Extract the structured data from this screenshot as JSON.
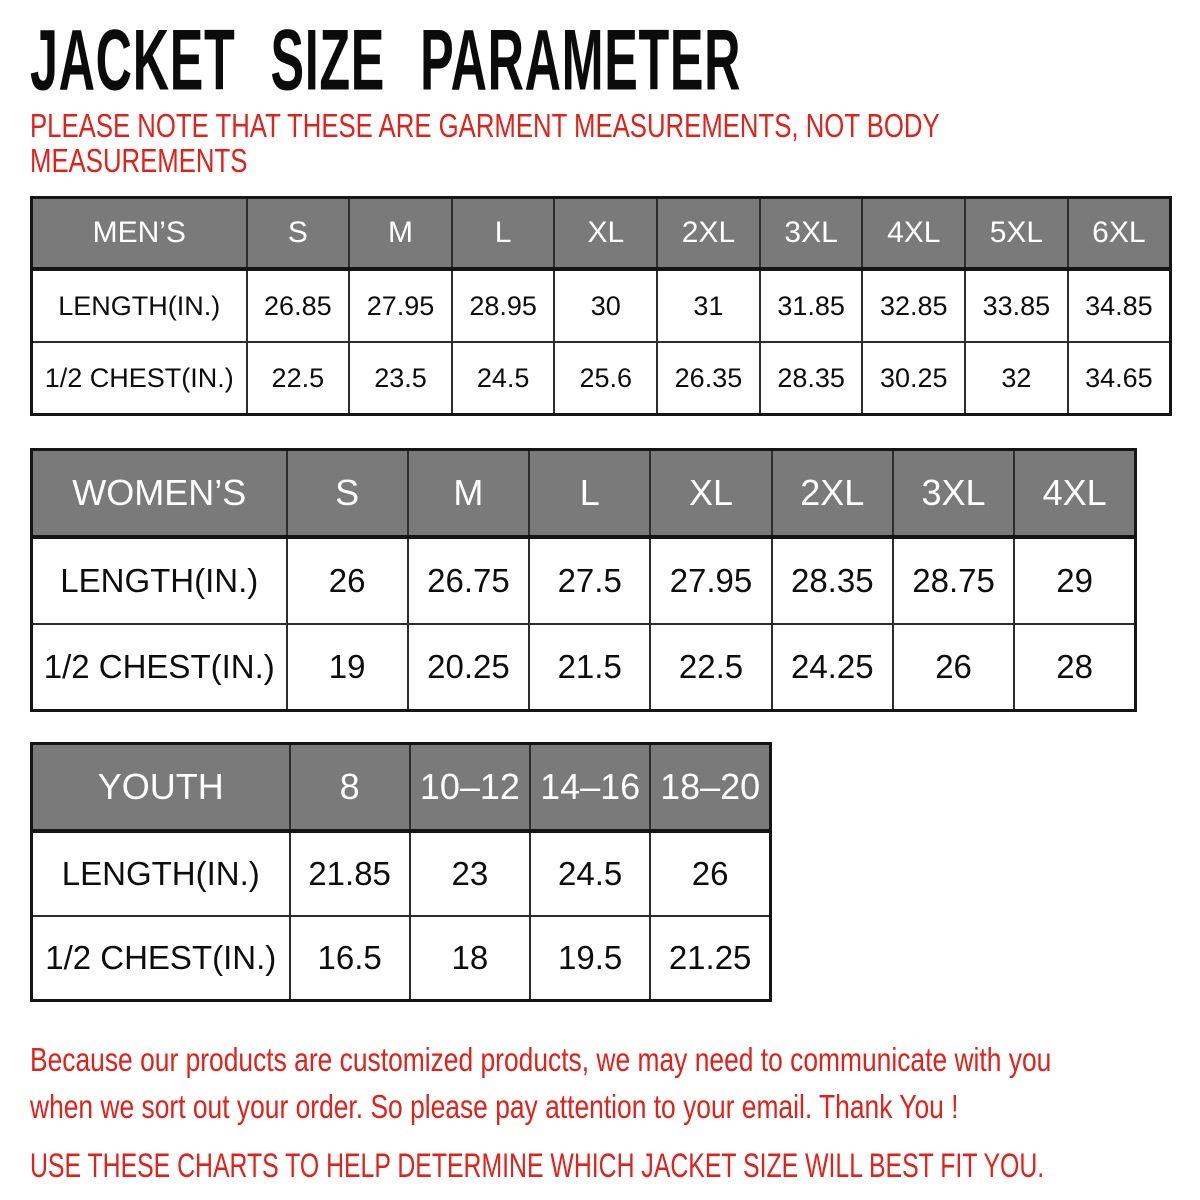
{
  "title": "JACKET SIZE PARAMETER",
  "note": {
    "lines": [
      "PLEASE NOTE THAT THESE ARE GARMENT MEASUREMENTS, NOT BODY",
      "MEASUREMENTS"
    ]
  },
  "tables": {
    "mens": {
      "header": [
        "MEN’S",
        "S",
        "M",
        "L",
        "XL",
        "2XL",
        "3XL",
        "4XL",
        "5XL",
        "6XL"
      ],
      "rows": [
        {
          "label": "LENGTH(IN.)",
          "values": [
            "26.85",
            "27.95",
            "28.95",
            "30",
            "31",
            "31.85",
            "32.85",
            "33.85",
            "34.85"
          ]
        },
        {
          "label": "1/2 CHEST(IN.)",
          "values": [
            "22.5",
            "23.5",
            "24.5",
            "25.6",
            "26.35",
            "28.35",
            "30.25",
            "32",
            "34.65"
          ]
        }
      ]
    },
    "womens": {
      "header": [
        "WOMEN’S",
        "S",
        "M",
        "L",
        "XL",
        "2XL",
        "3XL",
        "4XL"
      ],
      "rows": [
        {
          "label": "LENGTH(IN.)",
          "values": [
            "26",
            "26.75",
            "27.5",
            "27.95",
            "28.35",
            "28.75",
            "29"
          ]
        },
        {
          "label": "1/2 CHEST(IN.)",
          "values": [
            "19",
            "20.25",
            "21.5",
            "22.5",
            "24.25",
            "26",
            "28"
          ]
        }
      ]
    },
    "youth": {
      "header": [
        "YOUTH",
        "8",
        "10–12",
        "14–16",
        "18–20"
      ],
      "rows": [
        {
          "label": "LENGTH(IN.)",
          "values": [
            "21.85",
            "23",
            "24.5",
            "26"
          ]
        },
        {
          "label": "1/2 CHEST(IN.)",
          "values": [
            "16.5",
            "18",
            "19.5",
            "21.25"
          ]
        }
      ]
    }
  },
  "footer": {
    "paragraph_lines": [
      "Because our products are customized products, we may need to communicate with you",
      "when we sort out your order. So please pay attention to your email. Thank You !"
    ],
    "charts_line": "USE THESE CHARTS TO HELP DETERMINE WHICH JACKET SIZE WILL BEST FIT YOU."
  },
  "colors": {
    "accent_red": "#e2211a",
    "header_gray": "#7a7a7a",
    "header_text": "#ffffff",
    "title_black": "#0b0b0b",
    "border_dark": "#151515"
  }
}
